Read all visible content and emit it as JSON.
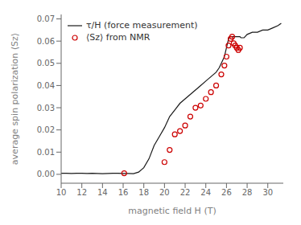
{
  "chart_data": {
    "type": "line",
    "title": "",
    "xlabel": "magnetic field H (T)",
    "ylabel": "average spin polarization ⟨Sz⟩",
    "xlim": [
      10,
      31.5
    ],
    "ylim": [
      -0.004,
      0.072
    ],
    "xticks": [
      10,
      12,
      14,
      16,
      18,
      20,
      22,
      24,
      26,
      28,
      30
    ],
    "yticks": [
      {
        "value": 0,
        "label": "0.00"
      },
      0.01,
      0.02,
      0.03,
      0.04,
      0.05,
      0.06,
      0.07
    ],
    "grid": false,
    "legend": "upper left",
    "series": [
      {
        "name": "τ/H (force measurement)",
        "type": "line",
        "color": "#1a1a1a",
        "x": [
          10.0,
          10.5,
          11.0,
          11.5,
          12.0,
          12.5,
          13.0,
          13.5,
          14.0,
          14.5,
          15.0,
          15.5,
          16.0,
          16.5,
          17.0,
          17.5,
          18.0,
          18.5,
          19.0,
          19.5,
          20.0,
          20.5,
          21.0,
          21.5,
          22.0,
          22.5,
          23.0,
          23.5,
          24.0,
          24.5,
          25.0,
          25.3,
          25.6,
          25.8,
          26.0,
          26.1,
          26.2,
          26.3,
          26.4,
          26.5,
          26.55,
          26.6,
          26.65,
          26.7,
          26.75,
          26.8,
          26.9,
          27.0,
          27.1,
          27.2,
          27.3,
          27.4,
          27.5,
          27.6,
          27.7,
          27.8,
          28.0,
          28.5,
          29.0,
          29.5,
          30.0,
          30.5,
          31.0,
          31.3
        ],
        "values": [
          0.0005,
          0.0005,
          0.0004,
          0.0005,
          0.0005,
          0.0004,
          0.0005,
          0.0004,
          0.0003,
          0.0004,
          0.0005,
          0.0005,
          0.0004,
          0.0004,
          0.0003,
          0.001,
          0.003,
          0.007,
          0.013,
          0.017,
          0.021,
          0.026,
          0.029,
          0.032,
          0.034,
          0.036,
          0.038,
          0.04,
          0.042,
          0.044,
          0.046,
          0.048,
          0.051,
          0.053,
          0.057,
          0.059,
          0.061,
          0.062,
          0.062,
          0.062,
          0.062,
          0.062,
          0.062,
          0.062,
          0.062,
          0.062,
          0.062,
          0.062,
          0.062,
          0.062,
          0.062,
          0.0615,
          0.0615,
          0.0615,
          0.0615,
          0.062,
          0.063,
          0.064,
          0.064,
          0.065,
          0.065,
          0.066,
          0.067,
          0.068
        ]
      },
      {
        "name": "⟨Sz⟩ from NMR",
        "type": "scatter",
        "marker": "circle",
        "color": "#cc0000",
        "x": [
          16.1,
          20.0,
          20.5,
          21.0,
          21.5,
          22.0,
          22.5,
          23.0,
          23.5,
          24.0,
          24.5,
          25.0,
          25.5,
          25.8,
          26.0,
          26.2,
          26.4,
          26.55,
          26.7,
          26.85,
          27.0,
          27.15,
          27.3
        ],
        "values": [
          0.0005,
          0.0055,
          0.011,
          0.018,
          0.0195,
          0.022,
          0.026,
          0.03,
          0.031,
          0.034,
          0.037,
          0.04,
          0.045,
          0.049,
          0.053,
          0.058,
          0.061,
          0.062,
          0.059,
          0.058,
          0.057,
          0.056,
          0.057
        ]
      }
    ]
  }
}
